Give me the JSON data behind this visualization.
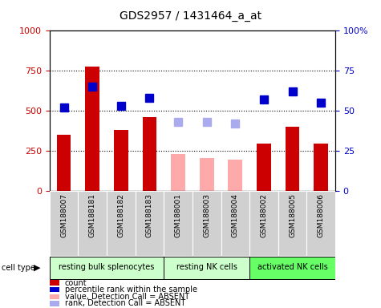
{
  "title": "GDS2957 / 1431464_a_at",
  "samples": [
    "GSM188007",
    "GSM188181",
    "GSM188182",
    "GSM188183",
    "GSM188001",
    "GSM188003",
    "GSM188004",
    "GSM188002",
    "GSM188005",
    "GSM188006"
  ],
  "counts": [
    350,
    775,
    380,
    460,
    null,
    null,
    null,
    295,
    400,
    295
  ],
  "counts_absent": [
    null,
    null,
    null,
    null,
    230,
    205,
    195,
    null,
    null,
    null
  ],
  "percentile_ranks": [
    52,
    65,
    53,
    58,
    null,
    null,
    null,
    57,
    62,
    55
  ],
  "percentile_ranks_absent": [
    null,
    null,
    null,
    null,
    43,
    43,
    42,
    null,
    null,
    null
  ],
  "bar_color_present": "#cc0000",
  "bar_color_absent": "#ffaaaa",
  "dot_color_present": "#0000cc",
  "dot_color_absent": "#aaaaee",
  "ylim_left": [
    0,
    1000
  ],
  "ylim_right": [
    0,
    100
  ],
  "yticks_left": [
    0,
    250,
    500,
    750,
    1000
  ],
  "yticks_right": [
    0,
    25,
    50,
    75,
    100
  ],
  "groups": [
    {
      "label": "resting bulk splenocytes",
      "indices": [
        0,
        1,
        2,
        3
      ],
      "color": "#ccffcc"
    },
    {
      "label": "resting NK cells",
      "indices": [
        4,
        5,
        6
      ],
      "color": "#ccffcc"
    },
    {
      "label": "activated NK cells",
      "indices": [
        7,
        8,
        9
      ],
      "color": "#66ff66"
    }
  ],
  "cell_type_label": "cell type",
  "legend_items": [
    {
      "label": "count",
      "color": "#cc0000"
    },
    {
      "label": "percentile rank within the sample",
      "color": "#0000cc"
    },
    {
      "label": "value, Detection Call = ABSENT",
      "color": "#ffaaaa"
    },
    {
      "label": "rank, Detection Call = ABSENT",
      "color": "#aaaaee"
    }
  ]
}
